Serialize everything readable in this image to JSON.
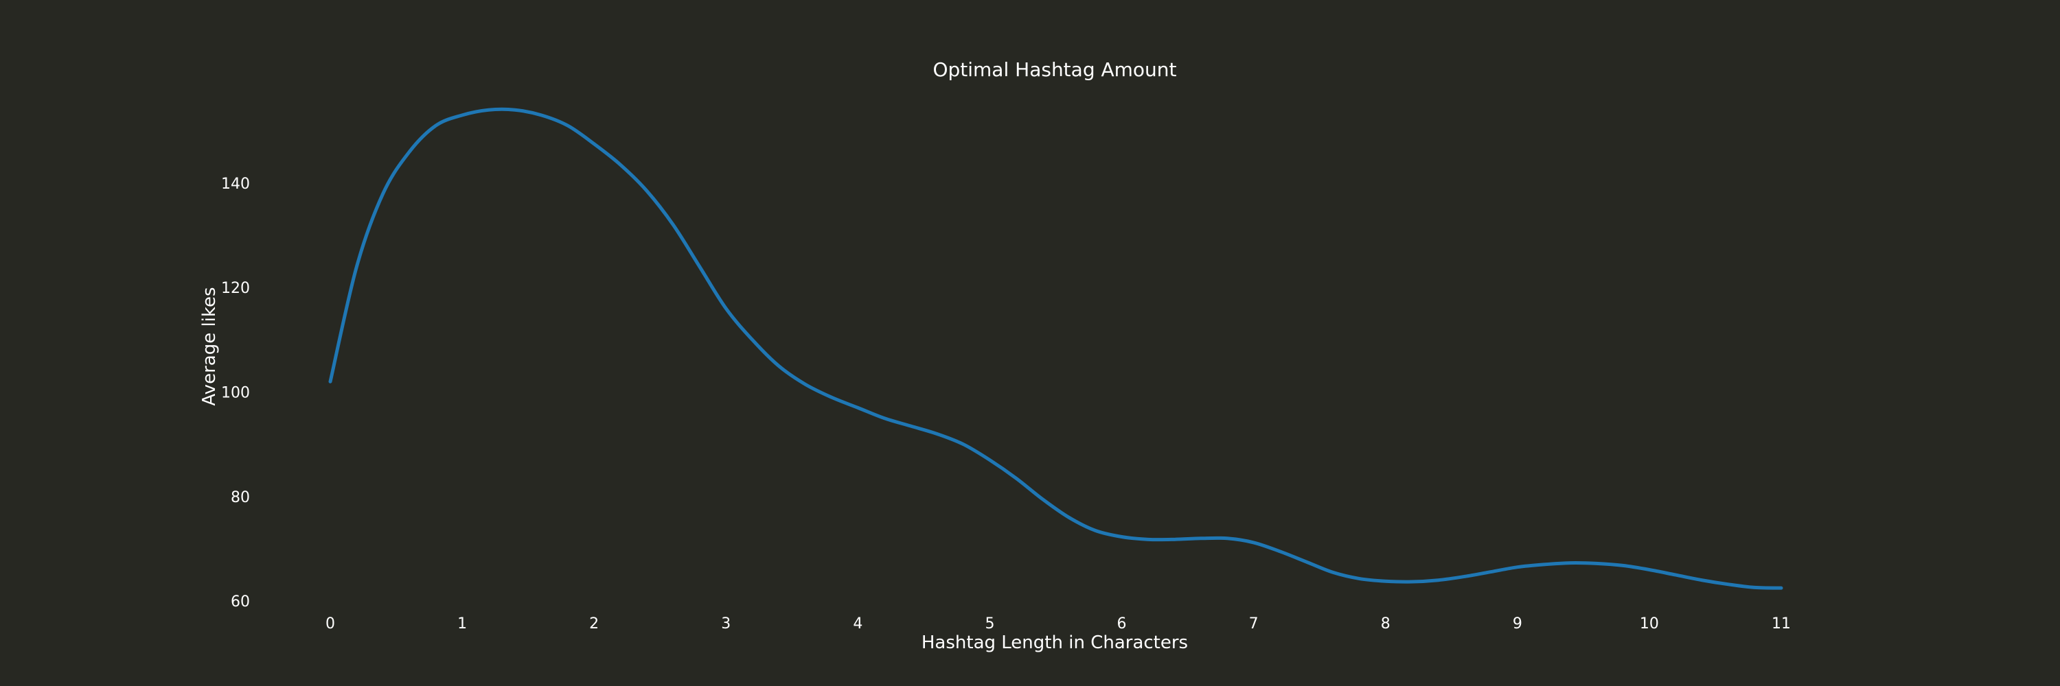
{
  "chart_data": {
    "type": "line",
    "title": "Optimal Hashtag Amount",
    "xlabel": "Hashtag Length in Characters",
    "ylabel": "Average likes",
    "x_ticks": [
      "0",
      "1",
      "2",
      "3",
      "4",
      "5",
      "6",
      "7",
      "8",
      "9",
      "10",
      "11"
    ],
    "y_ticks": [
      "60",
      "80",
      "100",
      "120",
      "140"
    ],
    "xlim": [
      0,
      11
    ],
    "ylim": [
      59.5,
      156
    ],
    "grid": false,
    "series": [
      {
        "color": "#1f77b4",
        "points": [
          [
            0.0,
            102
          ],
          [
            0.2,
            124
          ],
          [
            0.4,
            138
          ],
          [
            0.6,
            146
          ],
          [
            0.8,
            151
          ],
          [
            1.0,
            153
          ],
          [
            1.2,
            154
          ],
          [
            1.4,
            154
          ],
          [
            1.6,
            153
          ],
          [
            1.8,
            151
          ],
          [
            2.0,
            147.5
          ],
          [
            2.2,
            143.5
          ],
          [
            2.4,
            138.5
          ],
          [
            2.6,
            132
          ],
          [
            2.8,
            124
          ],
          [
            3.0,
            116
          ],
          [
            3.2,
            110
          ],
          [
            3.4,
            105
          ],
          [
            3.6,
            101.5
          ],
          [
            3.8,
            99
          ],
          [
            4.0,
            97
          ],
          [
            4.2,
            95
          ],
          [
            4.4,
            93.5
          ],
          [
            4.6,
            92
          ],
          [
            4.8,
            90
          ],
          [
            5.0,
            87
          ],
          [
            5.2,
            83.5
          ],
          [
            5.4,
            79.5
          ],
          [
            5.6,
            76
          ],
          [
            5.8,
            73.5
          ],
          [
            6.0,
            72.3
          ],
          [
            6.2,
            71.8
          ],
          [
            6.4,
            71.8
          ],
          [
            6.6,
            72
          ],
          [
            6.8,
            72
          ],
          [
            7.0,
            71.2
          ],
          [
            7.2,
            69.5
          ],
          [
            7.4,
            67.5
          ],
          [
            7.6,
            65.5
          ],
          [
            7.8,
            64.3
          ],
          [
            8.0,
            63.8
          ],
          [
            8.2,
            63.7
          ],
          [
            8.4,
            64
          ],
          [
            8.6,
            64.7
          ],
          [
            8.8,
            65.6
          ],
          [
            9.0,
            66.5
          ],
          [
            9.2,
            67
          ],
          [
            9.4,
            67.3
          ],
          [
            9.6,
            67.2
          ],
          [
            9.8,
            66.8
          ],
          [
            10.0,
            66
          ],
          [
            10.2,
            65
          ],
          [
            10.4,
            64
          ],
          [
            10.6,
            63.2
          ],
          [
            10.8,
            62.6
          ],
          [
            11.0,
            62.5
          ]
        ]
      }
    ]
  }
}
